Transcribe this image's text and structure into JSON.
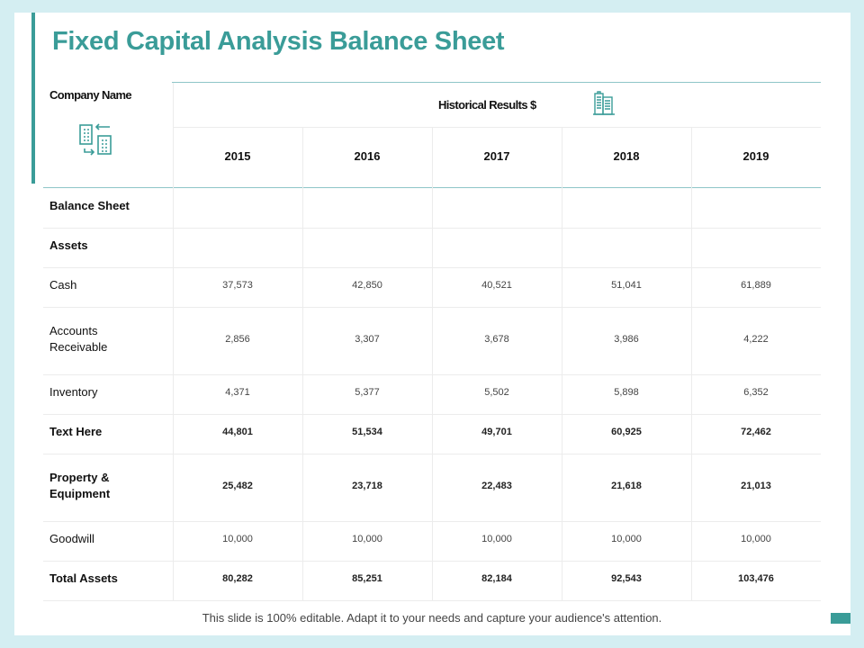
{
  "title": "Fixed Capital Analysis Balance Sheet",
  "header": {
    "company_name": "Company Name",
    "historical_results": "Historical Results $",
    "years": [
      "2015",
      "2016",
      "2017",
      "2018",
      "2019"
    ]
  },
  "rows": [
    {
      "label": "Balance Sheet",
      "bold": true,
      "values": [
        "",
        "",
        "",
        "",
        ""
      ]
    },
    {
      "label": "Assets",
      "bold": true,
      "values": [
        "",
        "",
        "",
        "",
        ""
      ]
    },
    {
      "label": "Cash",
      "bold": false,
      "values": [
        "37,573",
        "42,850",
        "40,521",
        "51,041",
        "61,889"
      ]
    },
    {
      "label": "Accounts Receivable",
      "bold": false,
      "values": [
        "2,856",
        "3,307",
        "3,678",
        "3,986",
        "4,222"
      ]
    },
    {
      "label": "Inventory",
      "bold": false,
      "values": [
        "4,371",
        "5,377",
        "5,502",
        "5,898",
        "6,352"
      ]
    },
    {
      "label": "Text Here",
      "bold": true,
      "values": [
        "44,801",
        "51,534",
        "49,701",
        "60,925",
        "72,462"
      ]
    },
    {
      "label": "Property & Equipment",
      "bold": true,
      "values": [
        "25,482",
        "23,718",
        "22,483",
        "21,618",
        "21,013"
      ]
    },
    {
      "label": "Goodwill",
      "bold": false,
      "values": [
        "10,000",
        "10,000",
        "10,000",
        "10,000",
        "10,000"
      ]
    },
    {
      "label": "Total Assets",
      "bold": true,
      "values": [
        "80,282",
        "85,251",
        "82,184",
        "92,543",
        "103,476"
      ]
    }
  ],
  "footer": "This slide is 100% editable. Adapt it to your needs and capture your audience's attention.",
  "colors": {
    "accent": "#3a9c98",
    "background": "#d4eef2",
    "rule": "#8fc6c8"
  },
  "icons": {
    "company": "building-transfer-icon",
    "historical": "office-building-icon"
  }
}
